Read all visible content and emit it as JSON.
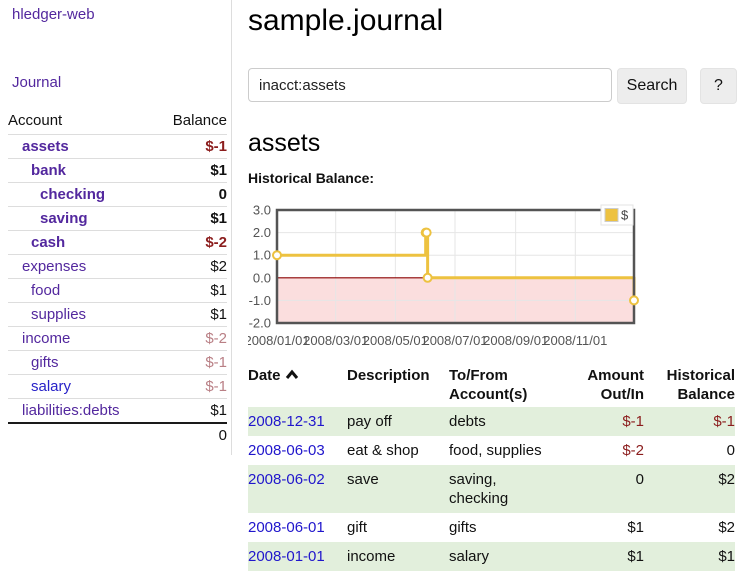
{
  "colors": {
    "accent_gold": "#edc240",
    "negative_strong": "#8b1d1d",
    "negative_soft": "#b97f85",
    "stripe_green": "#e2efdc",
    "link_purple": "#53289e",
    "link_blue": "#2016cc",
    "chart_negative_fill": "#fbdede",
    "chart_zero_line": "#8b0000",
    "chart_border": "#545454",
    "chart_grid": "#e6e6e6"
  },
  "sidebar": {
    "app_title": "hledger-web",
    "journal_link": "Journal",
    "account_header": "Account",
    "balance_header": "Balance",
    "accounts": [
      {
        "name": "assets",
        "balance": "$-1"
      },
      {
        "name": "bank",
        "balance": "$1"
      },
      {
        "name": "checking",
        "balance": "0"
      },
      {
        "name": "saving",
        "balance": "$1"
      },
      {
        "name": "cash",
        "balance": "$-2"
      },
      {
        "name": "expenses",
        "balance": "$2"
      },
      {
        "name": "food",
        "balance": "$1"
      },
      {
        "name": "supplies",
        "balance": "$1"
      },
      {
        "name": "income",
        "balance": "$-2"
      },
      {
        "name": "gifts",
        "balance": "$-1"
      },
      {
        "name": "salary",
        "balance": "$-1"
      },
      {
        "name": "liabilities:debts",
        "balance": "$1"
      }
    ],
    "total": "0"
  },
  "main": {
    "title": "sample.journal",
    "search": {
      "value": "inacct:assets",
      "clear_icon": "✕",
      "search_button": "Search",
      "help_button": "?"
    },
    "account_heading": "assets",
    "chart_heading": "Historical Balance:"
  },
  "chart_data": {
    "type": "line",
    "line_style": "step-after",
    "title": "Historical Balance:",
    "series": [
      {
        "name": "$",
        "color": "#edc240",
        "points": [
          {
            "date": "2008-01-01",
            "value": 1
          },
          {
            "date": "2008-06-01",
            "value": 2
          },
          {
            "date": "2008-06-02",
            "value": 2
          },
          {
            "date": "2008-06-03",
            "value": 0
          },
          {
            "date": "2008-12-31",
            "value": -1
          }
        ]
      }
    ],
    "x_range": [
      "2008-01-01",
      "2008-12-31"
    ],
    "ylim": [
      -2,
      3
    ],
    "ytick_labels": [
      "3.0",
      "2.0",
      "1.0",
      "0.0",
      "-1.0",
      "-2.0"
    ],
    "xtick_labels": [
      "2008/01/01",
      "2008/03/01",
      "2008/05/01",
      "2008/07/01",
      "2008/09/01",
      "2008/11/01"
    ],
    "grid": true,
    "legend_position": "top-right",
    "legend_label": "$",
    "negative_fill": "#fbdede",
    "zero_line_color": "#8b0000"
  },
  "register": {
    "headers": {
      "date": "Date",
      "description": "Description",
      "account": "To/From Account(s)",
      "amount": "Amount Out/In",
      "balance": "Historical Balance"
    },
    "rows": [
      {
        "date": "2008-12-31",
        "description": "pay off",
        "account": "debts",
        "amount": "$-1",
        "balance": "$-1"
      },
      {
        "date": "2008-06-03",
        "description": "eat & shop",
        "account": "food, supplies",
        "amount": "$-2",
        "balance": "0"
      },
      {
        "date": "2008-06-02",
        "description": "save",
        "account": "saving, checking",
        "amount": "0",
        "balance": "$2"
      },
      {
        "date": "2008-06-01",
        "description": "gift",
        "account": "gifts",
        "amount": "$1",
        "balance": "$2"
      },
      {
        "date": "2008-01-01",
        "description": "income",
        "account": "salary",
        "amount": "$1",
        "balance": "$1"
      }
    ]
  }
}
